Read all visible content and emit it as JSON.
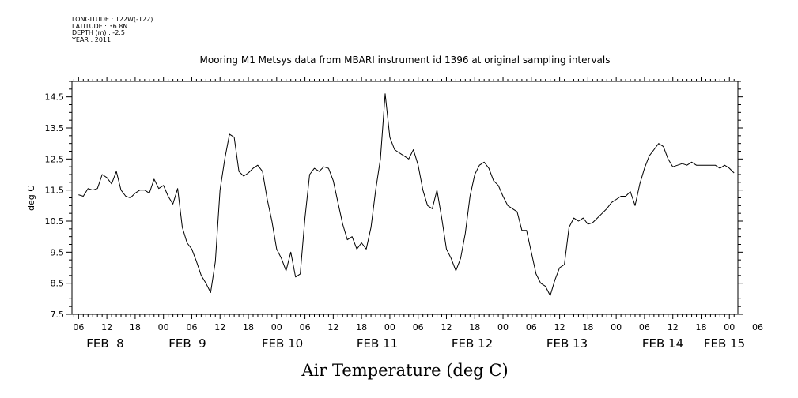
{
  "header": {
    "longitude": "LONGITUDE : 122W(-122)",
    "latitude": "LATITUDE : 36.8N",
    "depth": "DEPTH (m) : -2.5",
    "year": "YEAR : 2011"
  },
  "chart_data": {
    "type": "line",
    "title": "Mooring M1 Metsys data from MBARI instrument id 1396 at original sampling intervals",
    "xlabel": "Air Temperature (deg C)",
    "ylabel": "deg C",
    "ylim": [
      7.5,
      15.0
    ],
    "yticks": [
      "7.5",
      "8.5",
      "9.5",
      "10.5",
      "11.5",
      "12.5",
      "13.5",
      "14.5"
    ],
    "x_unit": "hours since 2011-02-08 00:00",
    "xlim": [
      4.6,
      145.8
    ],
    "hour_ticks": [
      {
        "h": 6,
        "label": "06"
      },
      {
        "h": 12,
        "label": "12"
      },
      {
        "h": 18,
        "label": "18"
      },
      {
        "h": 24,
        "label": "00"
      },
      {
        "h": 30,
        "label": "06"
      },
      {
        "h": 36,
        "label": "12"
      },
      {
        "h": 42,
        "label": "18"
      },
      {
        "h": 48,
        "label": "00"
      },
      {
        "h": 54,
        "label": "06"
      },
      {
        "h": 60,
        "label": "12"
      },
      {
        "h": 66,
        "label": "18"
      },
      {
        "h": 72,
        "label": "00"
      },
      {
        "h": 78,
        "label": "06"
      },
      {
        "h": 84,
        "label": "12"
      },
      {
        "h": 90,
        "label": "18"
      },
      {
        "h": 96,
        "label": "00"
      },
      {
        "h": 102,
        "label": "06"
      },
      {
        "h": 108,
        "label": "12"
      },
      {
        "h": 114,
        "label": "18"
      },
      {
        "h": 120,
        "label": "00"
      },
      {
        "h": 126,
        "label": "06"
      },
      {
        "h": 132,
        "label": "12"
      },
      {
        "h": 138,
        "label": "18"
      },
      {
        "h": 144,
        "label": "00"
      },
      {
        "h": 150,
        "label": "06"
      }
    ],
    "date_labels": [
      {
        "h": 12,
        "label": "FEB  8"
      },
      {
        "h": 36,
        "label": "FEB  9"
      },
      {
        "h": 60,
        "label": "FEB 10"
      },
      {
        "h": 84,
        "label": "FEB 11"
      },
      {
        "h": 108,
        "label": "FEB 12"
      },
      {
        "h": 132,
        "label": "FEB 13"
      },
      {
        "h": 156,
        "label": "FEB 14"
      },
      {
        "h": 170,
        "label": "FEB 15"
      }
    ],
    "grid": false,
    "series": [
      {
        "x": [
          6.0,
          7.0,
          8.0,
          9.0,
          10.0,
          11.0,
          12.0,
          13.0,
          14.0,
          15.0,
          16.0,
          17.0,
          18.0,
          19.0,
          20.0,
          21.0,
          22.0,
          23.0,
          24.0,
          25.0,
          26.0,
          27.0,
          28.0,
          29.0,
          30.0,
          31.0,
          32.0,
          33.0,
          34.0,
          35.0,
          36.0,
          37.0,
          38.0,
          39.0,
          40.0,
          41.0,
          42.0,
          43.0,
          44.0,
          45.0,
          46.0,
          47.0,
          48.0,
          49.0,
          50.0,
          51.0,
          52.0,
          53.0,
          54.0,
          55.0,
          56.0,
          57.0,
          58.0,
          59.0,
          60.0,
          61.0,
          62.0,
          63.0,
          64.0,
          65.0,
          66.0,
          67.0,
          68.0,
          69.0,
          70.0,
          71.0,
          72.0,
          73.0,
          74.0,
          75.0,
          76.0,
          77.0,
          78.0,
          79.0,
          80.0,
          81.0,
          82.0,
          83.0,
          84.0,
          85.0,
          86.0,
          87.0,
          88.0,
          89.0,
          90.0,
          91.0,
          92.0,
          93.0,
          94.0,
          95.0,
          96.0,
          97.0,
          98.0,
          99.0,
          100.0,
          101.0,
          102.0,
          103.0,
          104.0,
          105.0,
          106.0,
          107.0,
          108.0,
          109.0,
          110.0,
          111.0,
          112.0,
          113.0,
          114.0,
          115.0,
          116.0,
          117.0,
          118.0,
          119.0,
          120.0,
          121.0,
          122.0,
          123.0,
          124.0,
          125.0,
          126.0,
          127.0,
          128.0,
          129.0,
          130.0,
          131.0,
          132.0,
          133.0,
          134.0,
          135.0,
          136.0,
          137.0,
          138.0,
          139.0,
          140.0,
          141.0,
          142.0,
          143.0,
          144.0,
          145.0
        ],
        "y": [
          11.35,
          11.3,
          11.55,
          11.5,
          11.55,
          12.0,
          11.9,
          11.7,
          12.1,
          11.5,
          11.3,
          11.25,
          11.4,
          11.5,
          11.5,
          11.4,
          11.85,
          11.55,
          11.65,
          11.3,
          11.05,
          11.55,
          10.3,
          9.8,
          9.6,
          9.2,
          8.75,
          8.5,
          8.2,
          9.2,
          11.5,
          12.5,
          13.3,
          13.2,
          12.1,
          11.95,
          12.05,
          12.2,
          12.3,
          12.1,
          11.2,
          10.5,
          9.6,
          9.3,
          8.9,
          9.5,
          8.7,
          8.8,
          10.6,
          12.0,
          12.2,
          12.1,
          12.25,
          12.2,
          11.8,
          11.1,
          10.4,
          9.9,
          10.0,
          9.6,
          9.8,
          9.6,
          10.3,
          11.5,
          12.5,
          14.6,
          13.2,
          12.8,
          12.7,
          12.6,
          12.5,
          12.8,
          12.3,
          11.5,
          11.0,
          10.9,
          11.5,
          10.6,
          9.6,
          9.3,
          8.9,
          9.3,
          10.1,
          11.3,
          12.0,
          12.3,
          12.4,
          12.2,
          11.8,
          11.65,
          11.3,
          11.0,
          10.9,
          10.8,
          10.2,
          10.2,
          9.5,
          8.8,
          8.5,
          8.4,
          8.1,
          8.6,
          9.0,
          9.1,
          10.3,
          10.6,
          10.5,
          10.6,
          10.4,
          10.45,
          10.6,
          10.75,
          10.9,
          11.1,
          11.2,
          11.3,
          11.3,
          11.45,
          11.0,
          11.7,
          12.2,
          12.6,
          12.8,
          13.0,
          12.9,
          12.5,
          12.25,
          12.3,
          12.35,
          12.3,
          12.4,
          12.3,
          12.3,
          12.3,
          12.3,
          12.3,
          12.2,
          12.3,
          12.2,
          12.05
        ],
        "y_min_shown": 7.95,
        "y_max_shown": 14.65
      }
    ]
  }
}
